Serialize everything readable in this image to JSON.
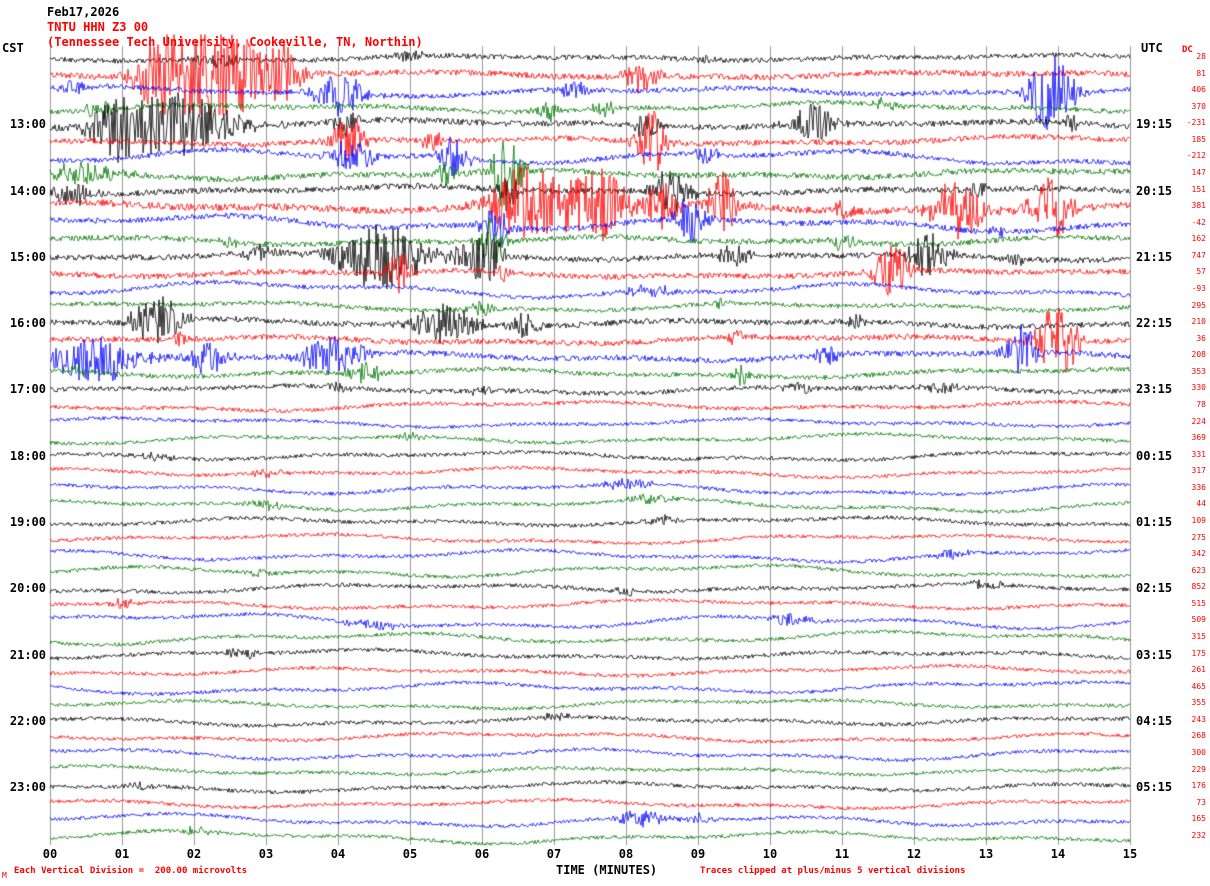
{
  "header": {
    "date": "Feb17,2026",
    "station_line": "TNTU HHN Z3 00",
    "location_line": "(Tennessee Tech University, Cookeville, TN, Northin)",
    "left_tz": "CST",
    "right_tz": "UTC",
    "dc_label": "DC"
  },
  "footer": {
    "left": "Each Vertical Division =  200.00 microvolts",
    "center": "TIME (MINUTES)",
    "right": "Traces clipped at plus/minus 5 vertical divisions",
    "watermark": "M"
  },
  "chart_data": {
    "type": "line",
    "title": "TNTU HHN Z3 00 helicorder seismogram, Feb17,2026",
    "xlabel": "TIME (MINUTES)",
    "x_ticks": [
      "00",
      "01",
      "02",
      "03",
      "04",
      "05",
      "06",
      "07",
      "08",
      "09",
      "10",
      "11",
      "12",
      "13",
      "14",
      "15"
    ],
    "x_range_minutes": [
      0,
      15
    ],
    "minutes_per_row": 15,
    "vertical_division_microvolts": 200.0,
    "clip_divisions": 5,
    "colors": {
      "black": "#000000",
      "red": "#ff0000",
      "blue": "#0000ff",
      "green": "#007700"
    },
    "bursts_format": "[minute, width_minutes, amplitude_px]",
    "rows": [
      {
        "cst": "",
        "utc": "",
        "dc": 28,
        "color": "black",
        "amp": 2.5,
        "wander": 2,
        "bursts": [
          [
            2.3,
            0.4,
            8
          ],
          [
            5.0,
            0.3,
            5
          ],
          [
            9.0,
            0.3,
            4
          ]
        ]
      },
      {
        "cst": "",
        "utc": "",
        "dc": 81,
        "color": "red",
        "amp": 3,
        "wander": 2,
        "bursts": [
          [
            2.3,
            1.0,
            55
          ],
          [
            1.5,
            0.4,
            30
          ],
          [
            3.3,
            0.3,
            25
          ],
          [
            8.2,
            0.35,
            16
          ]
        ]
      },
      {
        "cst": "",
        "utc": "",
        "dc": 406,
        "color": "blue",
        "amp": 2.5,
        "wander": 3,
        "bursts": [
          [
            0.3,
            0.3,
            8
          ],
          [
            4.0,
            0.5,
            22
          ],
          [
            7.3,
            0.3,
            10
          ],
          [
            13.9,
            0.45,
            38
          ]
        ]
      },
      {
        "cst": "",
        "utc": "",
        "dc": 370,
        "color": "green",
        "amp": 2.5,
        "wander": 3,
        "bursts": [
          [
            0.7,
            0.3,
            9
          ],
          [
            6.9,
            0.25,
            12
          ],
          [
            7.7,
            0.2,
            9
          ],
          [
            11.6,
            0.3,
            6
          ]
        ]
      },
      {
        "cst": "13:00",
        "utc": "19:15",
        "dc": -231,
        "color": "black",
        "amp": 3,
        "wander": 2.5,
        "bursts": [
          [
            0.9,
            0.4,
            20
          ],
          [
            1.7,
            1.2,
            32
          ],
          [
            4.1,
            0.25,
            13
          ],
          [
            8.3,
            0.25,
            18
          ],
          [
            10.6,
            0.45,
            20
          ],
          [
            14.2,
            0.2,
            8
          ]
        ]
      },
      {
        "cst": "",
        "utc": "",
        "dc": 185,
        "color": "red",
        "amp": 2.8,
        "wander": 2.5,
        "bursts": [
          [
            4.15,
            0.3,
            28
          ],
          [
            5.3,
            0.2,
            10
          ],
          [
            8.35,
            0.3,
            32
          ]
        ]
      },
      {
        "cst": "",
        "utc": "",
        "dc": -212,
        "color": "blue",
        "amp": 2.5,
        "wander": 5,
        "bursts": [
          [
            4.2,
            0.4,
            18
          ],
          [
            5.6,
            0.3,
            22
          ],
          [
            9.1,
            0.25,
            10
          ]
        ]
      },
      {
        "cst": "",
        "utc": "",
        "dc": 147,
        "color": "green",
        "amp": 3,
        "wander": 3,
        "bursts": [
          [
            0.5,
            0.7,
            10
          ],
          [
            5.5,
            0.2,
            12
          ],
          [
            6.35,
            0.3,
            42
          ]
        ]
      },
      {
        "cst": "14:00",
        "utc": "20:15",
        "dc": 151,
        "color": "black",
        "amp": 3,
        "wander": 2.5,
        "bursts": [
          [
            0.3,
            0.4,
            13
          ],
          [
            6.4,
            0.25,
            14
          ],
          [
            8.6,
            0.4,
            22
          ],
          [
            12.9,
            0.2,
            8
          ]
        ]
      },
      {
        "cst": "",
        "utc": "",
        "dc": 381,
        "color": "red",
        "amp": 3.5,
        "wander": 3,
        "bursts": [
          [
            6.6,
            0.7,
            42
          ],
          [
            7.6,
            0.6,
            38
          ],
          [
            8.5,
            0.3,
            28
          ],
          [
            9.35,
            0.3,
            32
          ],
          [
            11.0,
            0.2,
            10
          ],
          [
            12.6,
            0.5,
            28
          ],
          [
            13.9,
            0.45,
            32
          ]
        ]
      },
      {
        "cst": "",
        "utc": "",
        "dc": -42,
        "color": "blue",
        "amp": 2.8,
        "wander": 5,
        "bursts": [
          [
            6.2,
            0.3,
            22
          ],
          [
            8.9,
            0.3,
            26
          ],
          [
            13.2,
            0.2,
            8
          ]
        ]
      },
      {
        "cst": "",
        "utc": "",
        "dc": 162,
        "color": "green",
        "amp": 2.8,
        "wander": 3,
        "bursts": [
          [
            2.5,
            0.2,
            6
          ],
          [
            6.15,
            0.25,
            28
          ],
          [
            11.0,
            0.3,
            10
          ]
        ]
      },
      {
        "cst": "15:00",
        "utc": "21:15",
        "dc": 747,
        "color": "black",
        "amp": 3,
        "wander": 2.5,
        "bursts": [
          [
            2.9,
            0.25,
            10
          ],
          [
            4.6,
            0.9,
            32
          ],
          [
            6.0,
            0.4,
            28
          ],
          [
            9.5,
            0.3,
            12
          ],
          [
            12.2,
            0.35,
            26
          ],
          [
            13.4,
            0.2,
            8
          ]
        ]
      },
      {
        "cst": "",
        "utc": "",
        "dc": 57,
        "color": "red",
        "amp": 2.8,
        "wander": 2.5,
        "bursts": [
          [
            4.85,
            0.25,
            22
          ],
          [
            6.3,
            0.2,
            8
          ],
          [
            11.7,
            0.35,
            28
          ]
        ]
      },
      {
        "cst": "",
        "utc": "",
        "dc": -93,
        "color": "blue",
        "amp": 2.2,
        "wander": 5,
        "bursts": [
          [
            8.3,
            0.5,
            7
          ]
        ]
      },
      {
        "cst": "",
        "utc": "",
        "dc": 295,
        "color": "green",
        "amp": 2.2,
        "wander": 3,
        "bursts": [
          [
            6.0,
            0.3,
            7
          ],
          [
            9.3,
            0.2,
            5
          ]
        ]
      },
      {
        "cst": "16:00",
        "utc": "22:15",
        "dc": 210,
        "color": "black",
        "amp": 2.8,
        "wander": 2.5,
        "bursts": [
          [
            1.5,
            0.5,
            26
          ],
          [
            5.5,
            0.6,
            22
          ],
          [
            6.6,
            0.25,
            16
          ],
          [
            11.2,
            0.2,
            6
          ]
        ]
      },
      {
        "cst": "",
        "utc": "",
        "dc": 36,
        "color": "red",
        "amp": 2.8,
        "wander": 2.5,
        "bursts": [
          [
            1.8,
            0.2,
            6
          ],
          [
            9.5,
            0.2,
            8
          ],
          [
            14.0,
            0.4,
            38
          ]
        ]
      },
      {
        "cst": "",
        "utc": "",
        "dc": 208,
        "color": "blue",
        "amp": 2.8,
        "wander": 3,
        "bursts": [
          [
            0.6,
            0.9,
            22
          ],
          [
            2.2,
            0.4,
            18
          ],
          [
            3.9,
            0.6,
            20
          ],
          [
            10.8,
            0.25,
            9
          ],
          [
            13.5,
            0.3,
            28
          ]
        ]
      },
      {
        "cst": "",
        "utc": "",
        "dc": 353,
        "color": "green",
        "amp": 2.4,
        "wander": 3,
        "bursts": [
          [
            0.4,
            0.2,
            6
          ],
          [
            4.4,
            0.4,
            10
          ],
          [
            9.6,
            0.15,
            13
          ]
        ]
      },
      {
        "cst": "17:00",
        "utc": "23:15",
        "dc": 330,
        "color": "black",
        "amp": 2.4,
        "wander": 2.5,
        "bursts": [
          [
            4.0,
            0.2,
            8
          ],
          [
            6.0,
            0.2,
            5
          ],
          [
            10.4,
            0.3,
            7
          ],
          [
            12.4,
            0.3,
            7
          ]
        ]
      },
      {
        "cst": "",
        "utc": "",
        "dc": 78,
        "color": "red",
        "amp": 2,
        "wander": 3,
        "bursts": []
      },
      {
        "cst": "",
        "utc": "",
        "dc": 224,
        "color": "blue",
        "amp": 1.8,
        "wander": 3,
        "bursts": []
      },
      {
        "cst": "",
        "utc": "",
        "dc": 369,
        "color": "green",
        "amp": 1.8,
        "wander": 3,
        "bursts": [
          [
            5.0,
            0.3,
            4
          ]
        ]
      },
      {
        "cst": "18:00",
        "utc": "00:15",
        "dc": 331,
        "color": "black",
        "amp": 2,
        "wander": 3,
        "bursts": [
          [
            1.5,
            0.3,
            4
          ]
        ]
      },
      {
        "cst": "",
        "utc": "",
        "dc": 317,
        "color": "red",
        "amp": 1.8,
        "wander": 3,
        "bursts": [
          [
            3.0,
            0.4,
            4
          ]
        ]
      },
      {
        "cst": "",
        "utc": "",
        "dc": 336,
        "color": "blue",
        "amp": 1.8,
        "wander": 4,
        "bursts": [
          [
            8.0,
            0.5,
            5
          ]
        ]
      },
      {
        "cst": "",
        "utc": "",
        "dc": 44,
        "color": "green",
        "amp": 1.8,
        "wander": 4,
        "bursts": [
          [
            3.0,
            0.4,
            5
          ],
          [
            8.3,
            0.4,
            6
          ]
        ]
      },
      {
        "cst": "19:00",
        "utc": "01:15",
        "dc": 109,
        "color": "black",
        "amp": 2,
        "wander": 3,
        "bursts": [
          [
            8.5,
            0.3,
            5
          ]
        ]
      },
      {
        "cst": "",
        "utc": "",
        "dc": 275,
        "color": "red",
        "amp": 1.8,
        "wander": 3,
        "bursts": []
      },
      {
        "cst": "",
        "utc": "",
        "dc": 342,
        "color": "blue",
        "amp": 1.8,
        "wander": 4,
        "bursts": [
          [
            12.5,
            0.4,
            5
          ]
        ]
      },
      {
        "cst": "",
        "utc": "",
        "dc": 623,
        "color": "green",
        "amp": 1.8,
        "wander": 4,
        "bursts": [
          [
            3.0,
            0.3,
            5
          ]
        ]
      },
      {
        "cst": "20:00",
        "utc": "02:15",
        "dc": 852,
        "color": "black",
        "amp": 2,
        "wander": 3,
        "bursts": [
          [
            8.0,
            0.3,
            4
          ],
          [
            13.0,
            0.4,
            5
          ]
        ]
      },
      {
        "cst": "",
        "utc": "",
        "dc": 515,
        "color": "red",
        "amp": 1.8,
        "wander": 3,
        "bursts": [
          [
            1.0,
            0.3,
            5
          ]
        ]
      },
      {
        "cst": "",
        "utc": "",
        "dc": 509,
        "color": "blue",
        "amp": 1.8,
        "wander": 5,
        "bursts": [
          [
            4.5,
            0.5,
            6
          ],
          [
            10.3,
            0.5,
            6
          ]
        ]
      },
      {
        "cst": "",
        "utc": "",
        "dc": 315,
        "color": "green",
        "amp": 1.8,
        "wander": 4,
        "bursts": []
      },
      {
        "cst": "21:00",
        "utc": "03:15",
        "dc": 175,
        "color": "black",
        "amp": 2,
        "wander": 3,
        "bursts": [
          [
            2.7,
            0.3,
            6
          ]
        ]
      },
      {
        "cst": "",
        "utc": "",
        "dc": 261,
        "color": "red",
        "amp": 1.8,
        "wander": 3,
        "bursts": []
      },
      {
        "cst": "",
        "utc": "",
        "dc": 465,
        "color": "blue",
        "amp": 1.8,
        "wander": 4,
        "bursts": []
      },
      {
        "cst": "",
        "utc": "",
        "dc": 355,
        "color": "green",
        "amp": 1.8,
        "wander": 3,
        "bursts": []
      },
      {
        "cst": "22:00",
        "utc": "04:15",
        "dc": 243,
        "color": "black",
        "amp": 2,
        "wander": 3,
        "bursts": [
          [
            7.0,
            0.3,
            4
          ]
        ]
      },
      {
        "cst": "",
        "utc": "",
        "dc": 268,
        "color": "red",
        "amp": 1.8,
        "wander": 3,
        "bursts": []
      },
      {
        "cst": "",
        "utc": "",
        "dc": 300,
        "color": "blue",
        "amp": 1.8,
        "wander": 4,
        "bursts": []
      },
      {
        "cst": "",
        "utc": "",
        "dc": 229,
        "color": "green",
        "amp": 1.8,
        "wander": 3,
        "bursts": []
      },
      {
        "cst": "23:00",
        "utc": "05:15",
        "dc": 176,
        "color": "black",
        "amp": 2,
        "wander": 3,
        "bursts": [
          [
            1.2,
            0.3,
            4
          ]
        ]
      },
      {
        "cst": "",
        "utc": "",
        "dc": 73,
        "color": "red",
        "amp": 1.8,
        "wander": 3,
        "bursts": []
      },
      {
        "cst": "",
        "utc": "",
        "dc": 165,
        "color": "blue",
        "amp": 1.8,
        "wander": 4,
        "bursts": [
          [
            8.2,
            0.5,
            9
          ],
          [
            9.0,
            0.3,
            5
          ]
        ]
      },
      {
        "cst": "",
        "utc": "",
        "dc": 232,
        "color": "green",
        "amp": 1.8,
        "wander": 4,
        "bursts": [
          [
            2.0,
            0.4,
            4
          ]
        ]
      }
    ]
  }
}
